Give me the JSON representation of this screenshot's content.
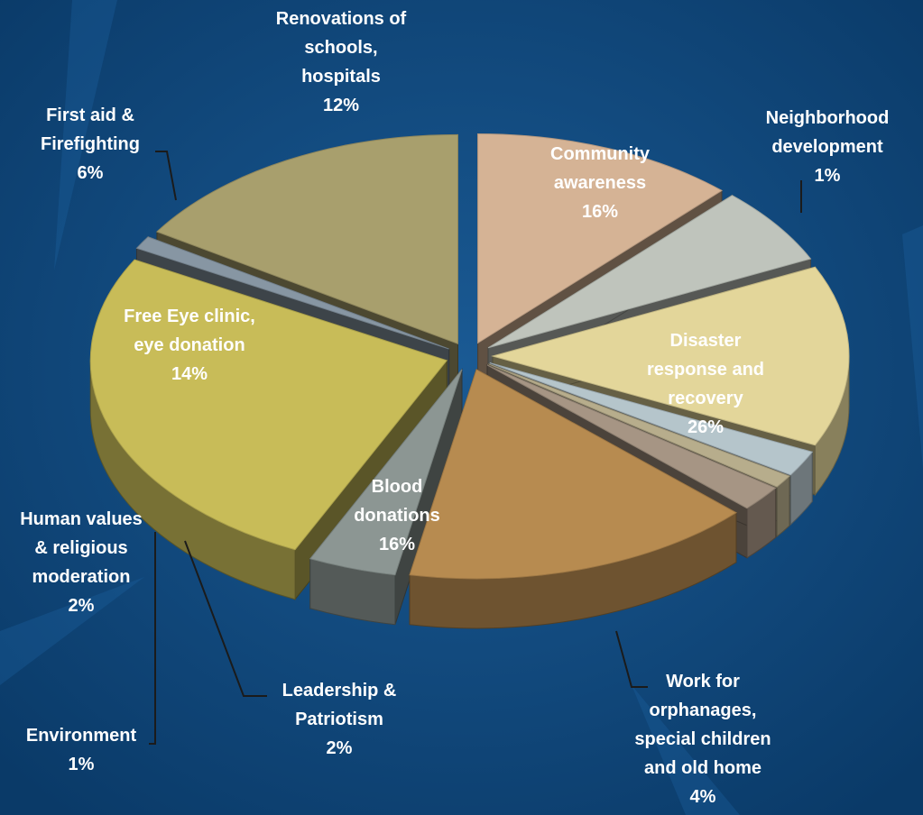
{
  "chart_data": {
    "type": "pie",
    "title": "",
    "slices": [
      {
        "label": "Community awareness",
        "lines": [
          "Community",
          "awareness",
          "16%"
        ],
        "value": 16,
        "color": "#a89f6d",
        "inside": true
      },
      {
        "label": "Neighborhood development",
        "lines": [
          "Neighborhood",
          "development",
          "1%"
        ],
        "value": 1,
        "color": "#8796a3",
        "inside": false
      },
      {
        "label": "Disaster response and recovery",
        "lines": [
          "Disaster",
          "response and",
          "recovery",
          "26%"
        ],
        "value": 26,
        "color": "#c8bc58",
        "inside": true
      },
      {
        "label": "Work for orphanages, special children and old home",
        "lines": [
          "Work for",
          "orphanages,",
          "special children",
          "and old home",
          "4%"
        ],
        "value": 4,
        "color": "#8c9693",
        "inside": false
      },
      {
        "label": "Blood donations",
        "lines": [
          "Blood",
          "donations",
          "16%"
        ],
        "value": 16,
        "color": "#b78b50",
        "inside": true
      },
      {
        "label": "Leadership & Patriotism",
        "lines": [
          "Leadership &",
          "Patriotism",
          "2%"
        ],
        "value": 2,
        "color": "#a69584",
        "inside": false
      },
      {
        "label": "Environment",
        "lines": [
          "Environment",
          "1%"
        ],
        "value": 1,
        "color": "#b7ad8c",
        "inside": false
      },
      {
        "label": "Human values & religious moderation",
        "lines": [
          "Human values",
          "& religious",
          "moderation",
          "2%"
        ],
        "value": 2,
        "color": "#b5c5cb",
        "inside": false
      },
      {
        "label": "Free Eye clinic, eye donation",
        "lines": [
          "Free Eye clinic,",
          "eye donation",
          "14%"
        ],
        "value": 14,
        "color": "#e3d69a",
        "inside": true
      },
      {
        "label": "First aid & Firefighting",
        "lines": [
          "First aid &",
          "Firefighting",
          "6%"
        ],
        "value": 6,
        "color": "#bfc4bc",
        "inside": false
      },
      {
        "label": "Renovations of schools, hospitals",
        "lines": [
          "Renovations of",
          "schools,",
          "hospitals",
          "12%"
        ],
        "value": 12,
        "color": "#d5b395",
        "inside": false
      }
    ],
    "legend": "none",
    "label_color": "#ffffff"
  }
}
